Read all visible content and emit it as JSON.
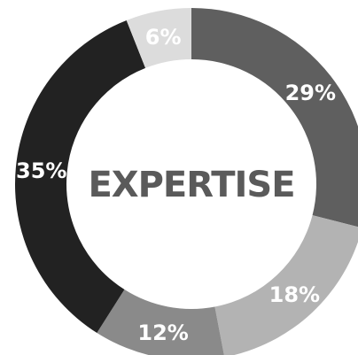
{
  "chart_data": {
    "type": "pie",
    "variant": "donut",
    "title": "EXPERTISE",
    "slices": [
      {
        "label": "29%",
        "value": 29,
        "color": "#5f5f5f"
      },
      {
        "label": "18%",
        "value": 18,
        "color": "#b3b3b3"
      },
      {
        "label": "12%",
        "value": 12,
        "color": "#8a8a8a"
      },
      {
        "label": "35%",
        "value": 35,
        "color": "#222222"
      },
      {
        "label": "6%",
        "value": 6,
        "color": "#dcdcdc"
      }
    ],
    "legend": "none",
    "label_color": "#ffffff",
    "title_color": "#5a5a5a"
  }
}
